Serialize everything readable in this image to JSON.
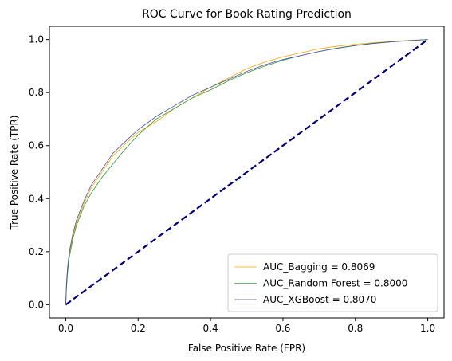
{
  "chart_data": {
    "type": "line",
    "title": "ROC Curve for Book Rating Prediction",
    "xlabel": "False Positive Rate (FPR)",
    "ylabel": "True Positive Rate (TPR)",
    "xlim": [
      -0.045,
      1.045
    ],
    "ylim": [
      -0.05,
      1.05
    ],
    "xticks": [
      "0.0",
      "0.2",
      "0.4",
      "0.6",
      "0.8",
      "1.0"
    ],
    "yticks": [
      "0.0",
      "0.2",
      "0.4",
      "0.6",
      "0.8",
      "1.0"
    ],
    "grid": false,
    "legend_position": "bottom-right",
    "series": [
      {
        "name": "AUC_Bagging = 0.8069",
        "color": "#ffa500",
        "x": [
          0,
          0.002,
          0.005,
          0.01,
          0.02,
          0.03,
          0.05,
          0.07,
          0.1,
          0.13,
          0.16,
          0.2,
          0.25,
          0.3,
          0.35,
          0.4,
          0.45,
          0.5,
          0.55,
          0.6,
          0.65,
          0.7,
          0.75,
          0.8,
          0.85,
          0.9,
          0.95,
          1.0
        ],
        "y": [
          0,
          0.07,
          0.13,
          0.19,
          0.26,
          0.31,
          0.38,
          0.44,
          0.5,
          0.56,
          0.6,
          0.65,
          0.69,
          0.74,
          0.78,
          0.82,
          0.855,
          0.89,
          0.915,
          0.935,
          0.95,
          0.965,
          0.975,
          0.982,
          0.988,
          0.993,
          0.997,
          1.0
        ]
      },
      {
        "name": "AUC_Random Forest = 0.8000",
        "color": "#2ca02c",
        "x": [
          0,
          0.002,
          0.005,
          0.01,
          0.02,
          0.03,
          0.05,
          0.07,
          0.1,
          0.13,
          0.16,
          0.2,
          0.25,
          0.3,
          0.35,
          0.4,
          0.45,
          0.5,
          0.55,
          0.6,
          0.65,
          0.7,
          0.75,
          0.8,
          0.85,
          0.9,
          0.95,
          1.0
        ],
        "y": [
          0,
          0.06,
          0.12,
          0.18,
          0.25,
          0.3,
          0.37,
          0.42,
          0.48,
          0.53,
          0.58,
          0.64,
          0.7,
          0.74,
          0.78,
          0.81,
          0.845,
          0.875,
          0.9,
          0.922,
          0.94,
          0.955,
          0.968,
          0.978,
          0.986,
          0.992,
          0.996,
          1.0
        ]
      },
      {
        "name": "AUC_XGBoost = 0.8070",
        "color": "#4c4ca6",
        "x": [
          0,
          0.002,
          0.005,
          0.01,
          0.02,
          0.03,
          0.05,
          0.07,
          0.1,
          0.13,
          0.16,
          0.2,
          0.25,
          0.3,
          0.35,
          0.4,
          0.45,
          0.5,
          0.55,
          0.6,
          0.65,
          0.7,
          0.75,
          0.8,
          0.85,
          0.9,
          0.95,
          1.0
        ],
        "y": [
          0,
          0.08,
          0.14,
          0.2,
          0.27,
          0.32,
          0.39,
          0.45,
          0.51,
          0.57,
          0.61,
          0.66,
          0.71,
          0.75,
          0.79,
          0.82,
          0.85,
          0.88,
          0.905,
          0.925,
          0.94,
          0.955,
          0.967,
          0.977,
          0.985,
          0.991,
          0.996,
          1.0
        ]
      }
    ],
    "reference_line": {
      "x": [
        0,
        1
      ],
      "y": [
        0,
        1
      ],
      "color": "#000080",
      "style": "dashed"
    }
  }
}
